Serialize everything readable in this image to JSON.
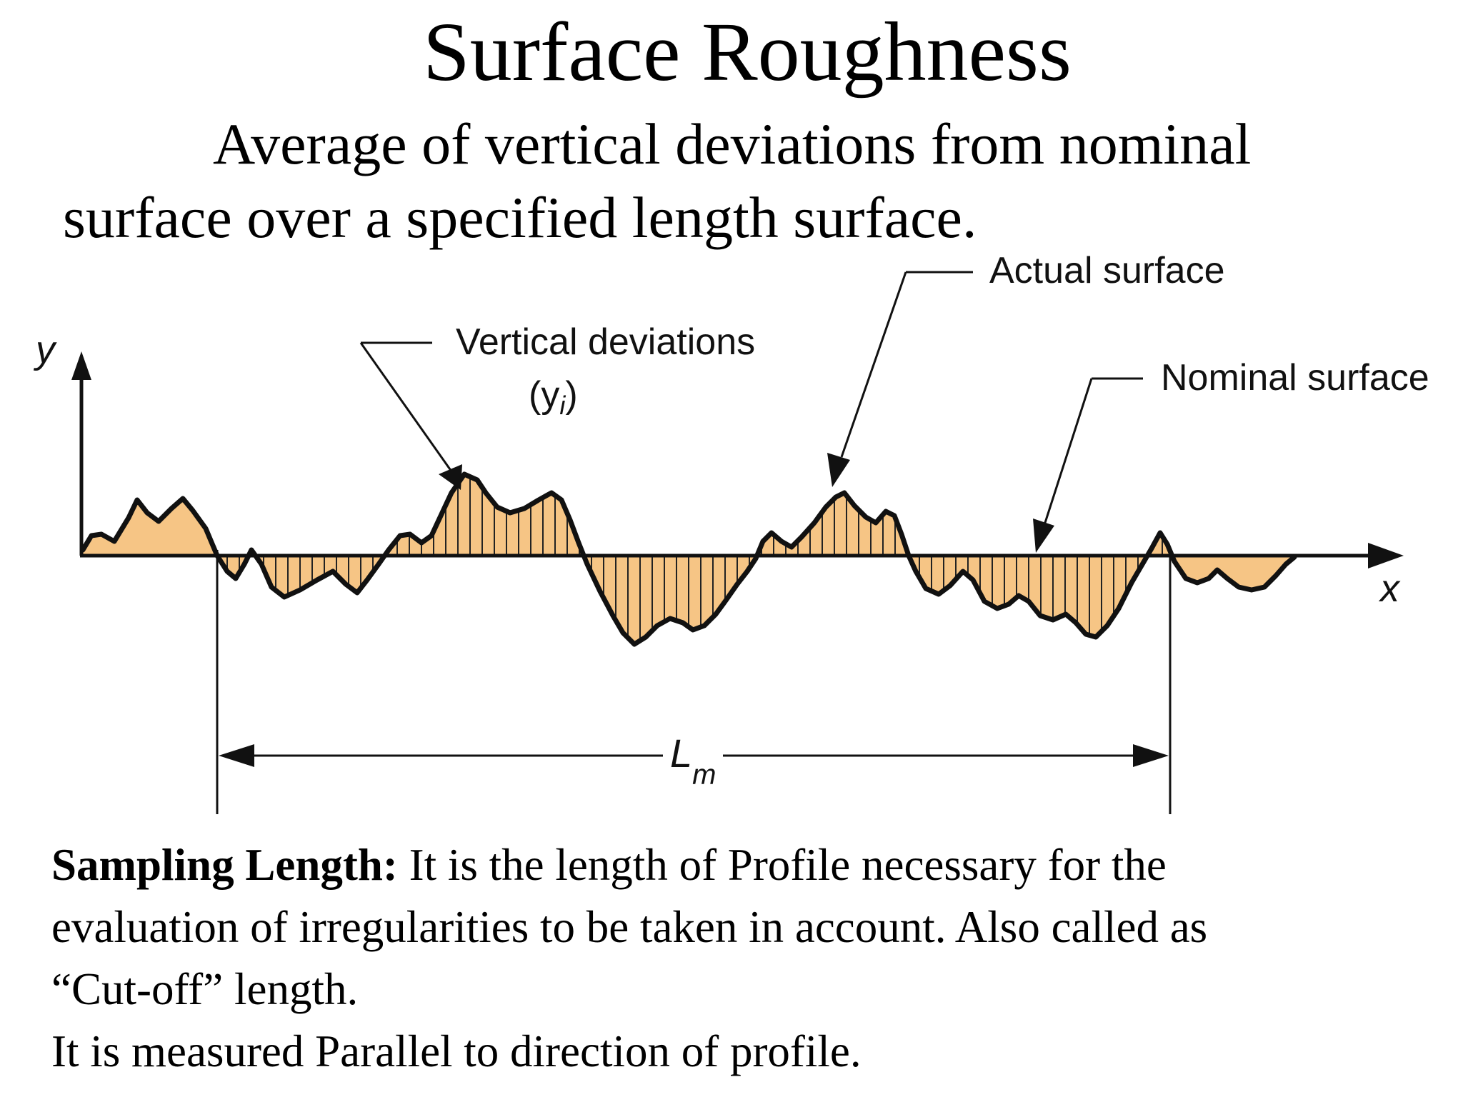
{
  "title": "Surface Roughness",
  "definition": {
    "line1": "Average of vertical deviations from nominal",
    "line2": "surface over a specified length surface."
  },
  "diagram": {
    "labels": {
      "actual_surface": "Actual surface",
      "vertical_deviations": "Vertical deviations",
      "yi": "(y",
      "yi_sub": "i",
      "yi_close": ")",
      "nominal_surface": "Nominal surface",
      "y_axis": "y",
      "x_axis": "x",
      "lm": "L",
      "lm_sub": "m"
    },
    "colors": {
      "fill": "#f6c585",
      "line": "#111111"
    }
  },
  "description": {
    "term": "Sampling Length:",
    "text1": " It is the length of Profile necessary for the",
    "text2": "evaluation of irregularities to be taken in account. Also called as",
    "text3": "“Cut-off” length.",
    "text4": "It is measured Parallel to direction of profile."
  }
}
